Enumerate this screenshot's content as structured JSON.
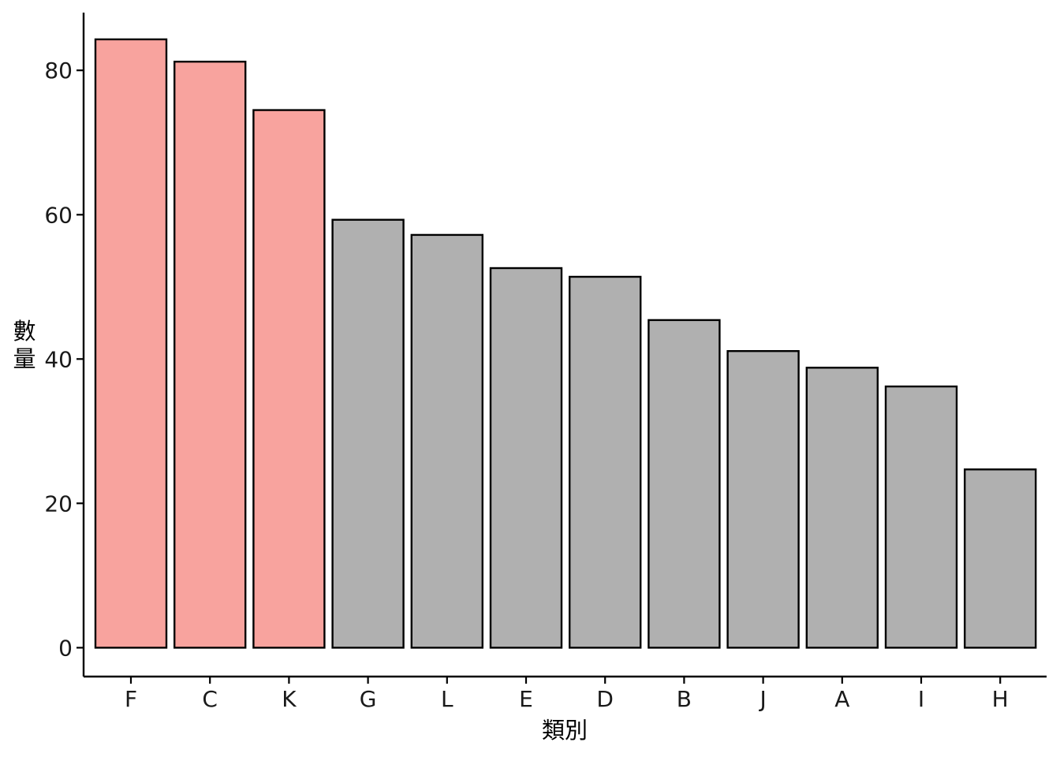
{
  "chart_data": {
    "type": "bar",
    "categories": [
      "F",
      "C",
      "K",
      "G",
      "L",
      "E",
      "D",
      "B",
      "J",
      "A",
      "I",
      "H"
    ],
    "values": [
      84.3,
      81.2,
      74.5,
      59.3,
      57.2,
      52.6,
      51.4,
      45.4,
      41.1,
      38.8,
      36.2,
      24.7
    ],
    "highlighted": [
      "F",
      "C",
      "K"
    ],
    "xlabel": "類別",
    "ylabel_lines": [
      "數",
      "量"
    ],
    "ylim": [
      -4,
      88
    ],
    "yticks": [
      0,
      20,
      40,
      60,
      80
    ],
    "colors": {
      "highlight": "#F8A39E",
      "default": "#B0B0B0",
      "bar_outline": "#000000",
      "axis": "#000000"
    },
    "grid": false,
    "legend": "none"
  }
}
